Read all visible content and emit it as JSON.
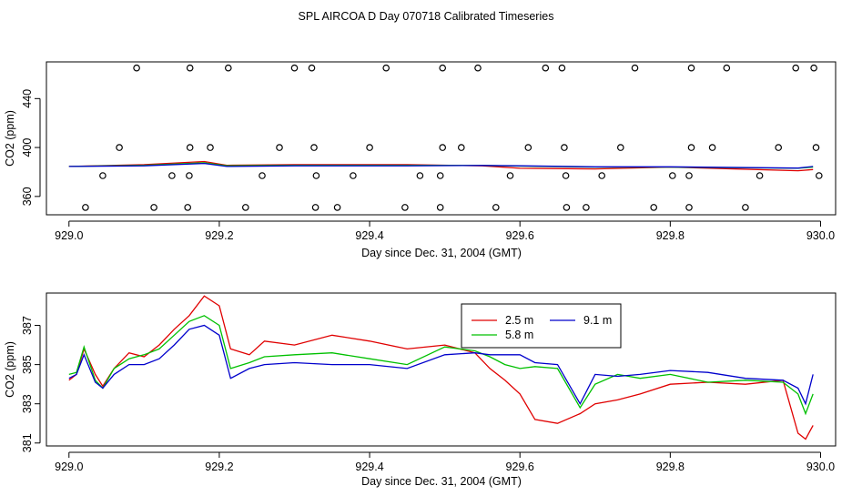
{
  "page_title": "SPL AIRCOA D  Day 070718  Calibrated Timeseries",
  "colors": {
    "s25": "#e00000",
    "s58": "#00c000",
    "s91": "#0000cc",
    "axis": "#000000"
  },
  "chart_data": [
    {
      "type": "scatter",
      "title": "",
      "xlabel": "Day since Dec. 31, 2004 (GMT)",
      "ylabel": "CO2 (ppm)",
      "xlim": [
        928.97,
        930.02
      ],
      "ylim": [
        345,
        470
      ],
      "xticks": [
        929.0,
        929.2,
        929.4,
        929.6,
        929.8,
        930.0
      ],
      "xtick_labels": [
        "929.0",
        "929.2",
        "929.4",
        "929.6",
        "929.8",
        "930.0"
      ],
      "yticks": [
        360,
        400,
        440
      ],
      "ytick_labels": [
        "360",
        "400",
        "440"
      ],
      "reference_points": {
        "name": "reference tanks",
        "x": [
          929.022,
          929.09,
          929.113,
          929.158,
          929.161,
          929.212,
          929.235,
          929.3,
          929.323,
          929.328,
          929.357,
          929.422,
          929.447,
          929.494,
          929.497,
          929.544,
          929.568,
          929.634,
          929.656,
          929.662,
          929.688,
          929.753,
          929.778,
          929.825,
          929.828,
          929.875,
          929.9,
          929.967,
          929.991,
          929.067,
          929.161,
          929.188,
          929.28,
          929.326,
          929.4,
          929.497,
          929.522,
          929.611,
          929.659,
          929.734,
          929.828,
          929.856,
          929.944,
          929.994,
          929.045,
          929.137,
          929.16,
          929.257,
          929.329,
          929.378,
          929.467,
          929.494,
          929.587,
          929.661,
          929.709,
          929.803,
          929.825,
          929.919,
          929.998
        ],
        "y": [
          351,
          465,
          351,
          351,
          465,
          465,
          351,
          465,
          465,
          351,
          351,
          465,
          351,
          351,
          465,
          465,
          351,
          465,
          465,
          351,
          351,
          465,
          351,
          351,
          465,
          465,
          351,
          465,
          465,
          400,
          400,
          400,
          400,
          400,
          400,
          400,
          400,
          400,
          400,
          400,
          400,
          400,
          400,
          400,
          377,
          377,
          377,
          377,
          377,
          377,
          377,
          377,
          377,
          377,
          377,
          377,
          377,
          377,
          377
        ]
      },
      "series": [
        {
          "name": "2.5 m",
          "x": [
            929.0,
            929.1,
            929.18,
            929.21,
            929.3,
            929.45,
            929.55,
            929.6,
            929.7,
            929.8,
            929.97,
            929.99
          ],
          "values": [
            384.5,
            386.0,
            388.5,
            385.5,
            386.0,
            386.0,
            385.0,
            383.0,
            382.5,
            384.0,
            381.0,
            382.0
          ]
        },
        {
          "name": "5.8 m",
          "x": [
            929.0,
            929.1,
            929.18,
            929.21,
            929.3,
            929.45,
            929.55,
            929.6,
            929.7,
            929.8,
            929.97,
            929.99
          ],
          "values": [
            384.5,
            385.5,
            387.5,
            385.0,
            385.5,
            385.5,
            385.3,
            384.8,
            384.0,
            384.0,
            383.0,
            384.0
          ]
        },
        {
          "name": "9.1 m",
          "x": [
            929.0,
            929.1,
            929.18,
            929.21,
            929.3,
            929.45,
            929.55,
            929.6,
            929.7,
            929.8,
            929.97,
            929.99
          ],
          "values": [
            384.5,
            385.0,
            387.0,
            384.5,
            385.0,
            385.0,
            385.3,
            385.0,
            384.2,
            384.2,
            383.2,
            384.5
          ]
        }
      ]
    },
    {
      "type": "line",
      "title": "",
      "xlabel": "Day since Dec. 31, 2004 (GMT)",
      "ylabel": "CO2 (ppm)",
      "xlim": [
        928.97,
        930.02
      ],
      "ylim": [
        380.85,
        388.65
      ],
      "xticks": [
        929.0,
        929.2,
        929.4,
        929.6,
        929.8,
        930.0
      ],
      "xtick_labels": [
        "929.0",
        "929.2",
        "929.4",
        "929.6",
        "929.8",
        "930.0"
      ],
      "yticks": [
        381,
        383,
        385,
        387
      ],
      "ytick_labels": [
        "381",
        "383",
        "385",
        "387"
      ],
      "legend": {
        "placement": "top-right-center",
        "entries": [
          "2.5 m",
          "5.8 m",
          "9.1 m"
        ]
      },
      "series": [
        {
          "name": "2.5 m",
          "x": [
            929.0,
            929.01,
            929.02,
            929.035,
            929.045,
            929.06,
            929.08,
            929.1,
            929.12,
            929.14,
            929.16,
            929.18,
            929.2,
            929.215,
            929.24,
            929.26,
            929.3,
            929.35,
            929.4,
            929.45,
            929.5,
            929.54,
            929.56,
            929.58,
            929.6,
            929.62,
            929.65,
            929.68,
            929.7,
            929.73,
            929.76,
            929.8,
            929.85,
            929.9,
            929.95,
            929.97,
            929.98,
            929.99
          ],
          "values": [
            384.2,
            384.5,
            385.8,
            384.5,
            383.9,
            384.8,
            385.6,
            385.4,
            386.0,
            386.8,
            387.5,
            388.5,
            388.0,
            385.8,
            385.5,
            386.2,
            386.0,
            386.5,
            386.2,
            385.8,
            386.0,
            385.6,
            384.8,
            384.2,
            383.5,
            382.2,
            382.0,
            382.5,
            383.0,
            383.2,
            383.5,
            384.0,
            384.1,
            384.0,
            384.2,
            381.5,
            381.2,
            381.9
          ]
        },
        {
          "name": "5.8 m",
          "x": [
            929.0,
            929.01,
            929.02,
            929.035,
            929.045,
            929.06,
            929.08,
            929.1,
            929.12,
            929.14,
            929.16,
            929.18,
            929.2,
            929.215,
            929.24,
            929.26,
            929.3,
            929.35,
            929.4,
            929.45,
            929.5,
            929.54,
            929.56,
            929.58,
            929.6,
            929.62,
            929.65,
            929.68,
            929.7,
            929.73,
            929.76,
            929.8,
            929.85,
            929.9,
            929.95,
            929.97,
            929.98,
            929.99
          ],
          "values": [
            384.5,
            384.6,
            385.9,
            384.2,
            383.8,
            384.8,
            385.3,
            385.5,
            385.8,
            386.5,
            387.2,
            387.5,
            387.0,
            384.8,
            385.1,
            385.4,
            385.5,
            385.6,
            385.3,
            385.0,
            385.9,
            385.7,
            385.4,
            385.0,
            384.8,
            384.9,
            384.8,
            382.8,
            384.0,
            384.5,
            384.3,
            384.5,
            384.1,
            384.2,
            384.1,
            383.5,
            382.5,
            383.5
          ]
        },
        {
          "name": "9.1 m",
          "x": [
            929.0,
            929.01,
            929.02,
            929.035,
            929.045,
            929.06,
            929.08,
            929.1,
            929.12,
            929.14,
            929.16,
            929.18,
            929.2,
            929.215,
            929.24,
            929.26,
            929.3,
            929.35,
            929.4,
            929.45,
            929.5,
            929.54,
            929.56,
            929.58,
            929.6,
            929.62,
            929.65,
            929.68,
            929.7,
            929.73,
            929.76,
            929.8,
            929.85,
            929.9,
            929.95,
            929.97,
            929.98,
            929.99
          ],
          "values": [
            384.3,
            384.5,
            385.5,
            384.1,
            383.8,
            384.5,
            385.0,
            385.0,
            385.3,
            386.0,
            386.8,
            387.0,
            386.5,
            384.3,
            384.8,
            385.0,
            385.1,
            385.0,
            385.0,
            384.8,
            385.5,
            385.6,
            385.5,
            385.5,
            385.5,
            385.1,
            385.0,
            383.0,
            384.5,
            384.4,
            384.5,
            384.7,
            384.6,
            384.3,
            384.2,
            383.8,
            383.0,
            384.5
          ]
        }
      ]
    }
  ]
}
